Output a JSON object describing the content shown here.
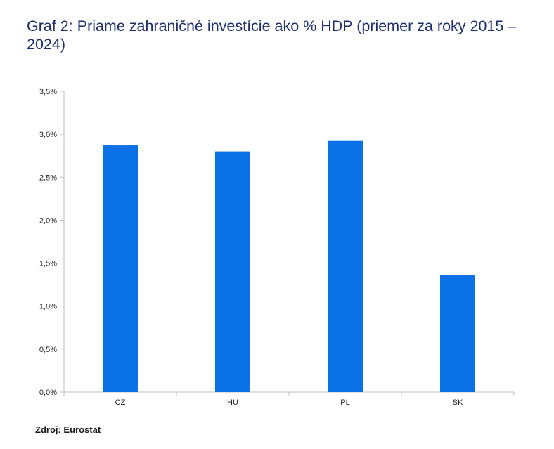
{
  "title": "Graf 2: Priame zahraničné investície ako % HDP (priemer za roky 2015 – 2024)",
  "source": "Zdroj: Eurostat",
  "colors": {
    "bar": "#0a72e6",
    "title": "#1d2e6e",
    "axis": "#bfbfbf"
  },
  "chart_data": {
    "type": "bar",
    "title": "Graf 2: Priame zahraničné investície ako % HDP (priemer za roky 2015 – 2024)",
    "categories": [
      "CZ",
      "HU",
      "PL",
      "SK"
    ],
    "values": [
      2.87,
      2.8,
      2.93,
      1.36
    ],
    "ylim": [
      0,
      3.5
    ],
    "yticks": [
      0,
      0.5,
      1.0,
      1.5,
      2.0,
      2.5,
      3.0,
      3.5
    ],
    "ytick_labels": [
      "0,0%",
      "0,5%",
      "1,0%",
      "1,5%",
      "2,0%",
      "2,5%",
      "3,0%",
      "3,5%"
    ],
    "xlabel": "",
    "ylabel": "",
    "grid": false,
    "legend": "none"
  }
}
